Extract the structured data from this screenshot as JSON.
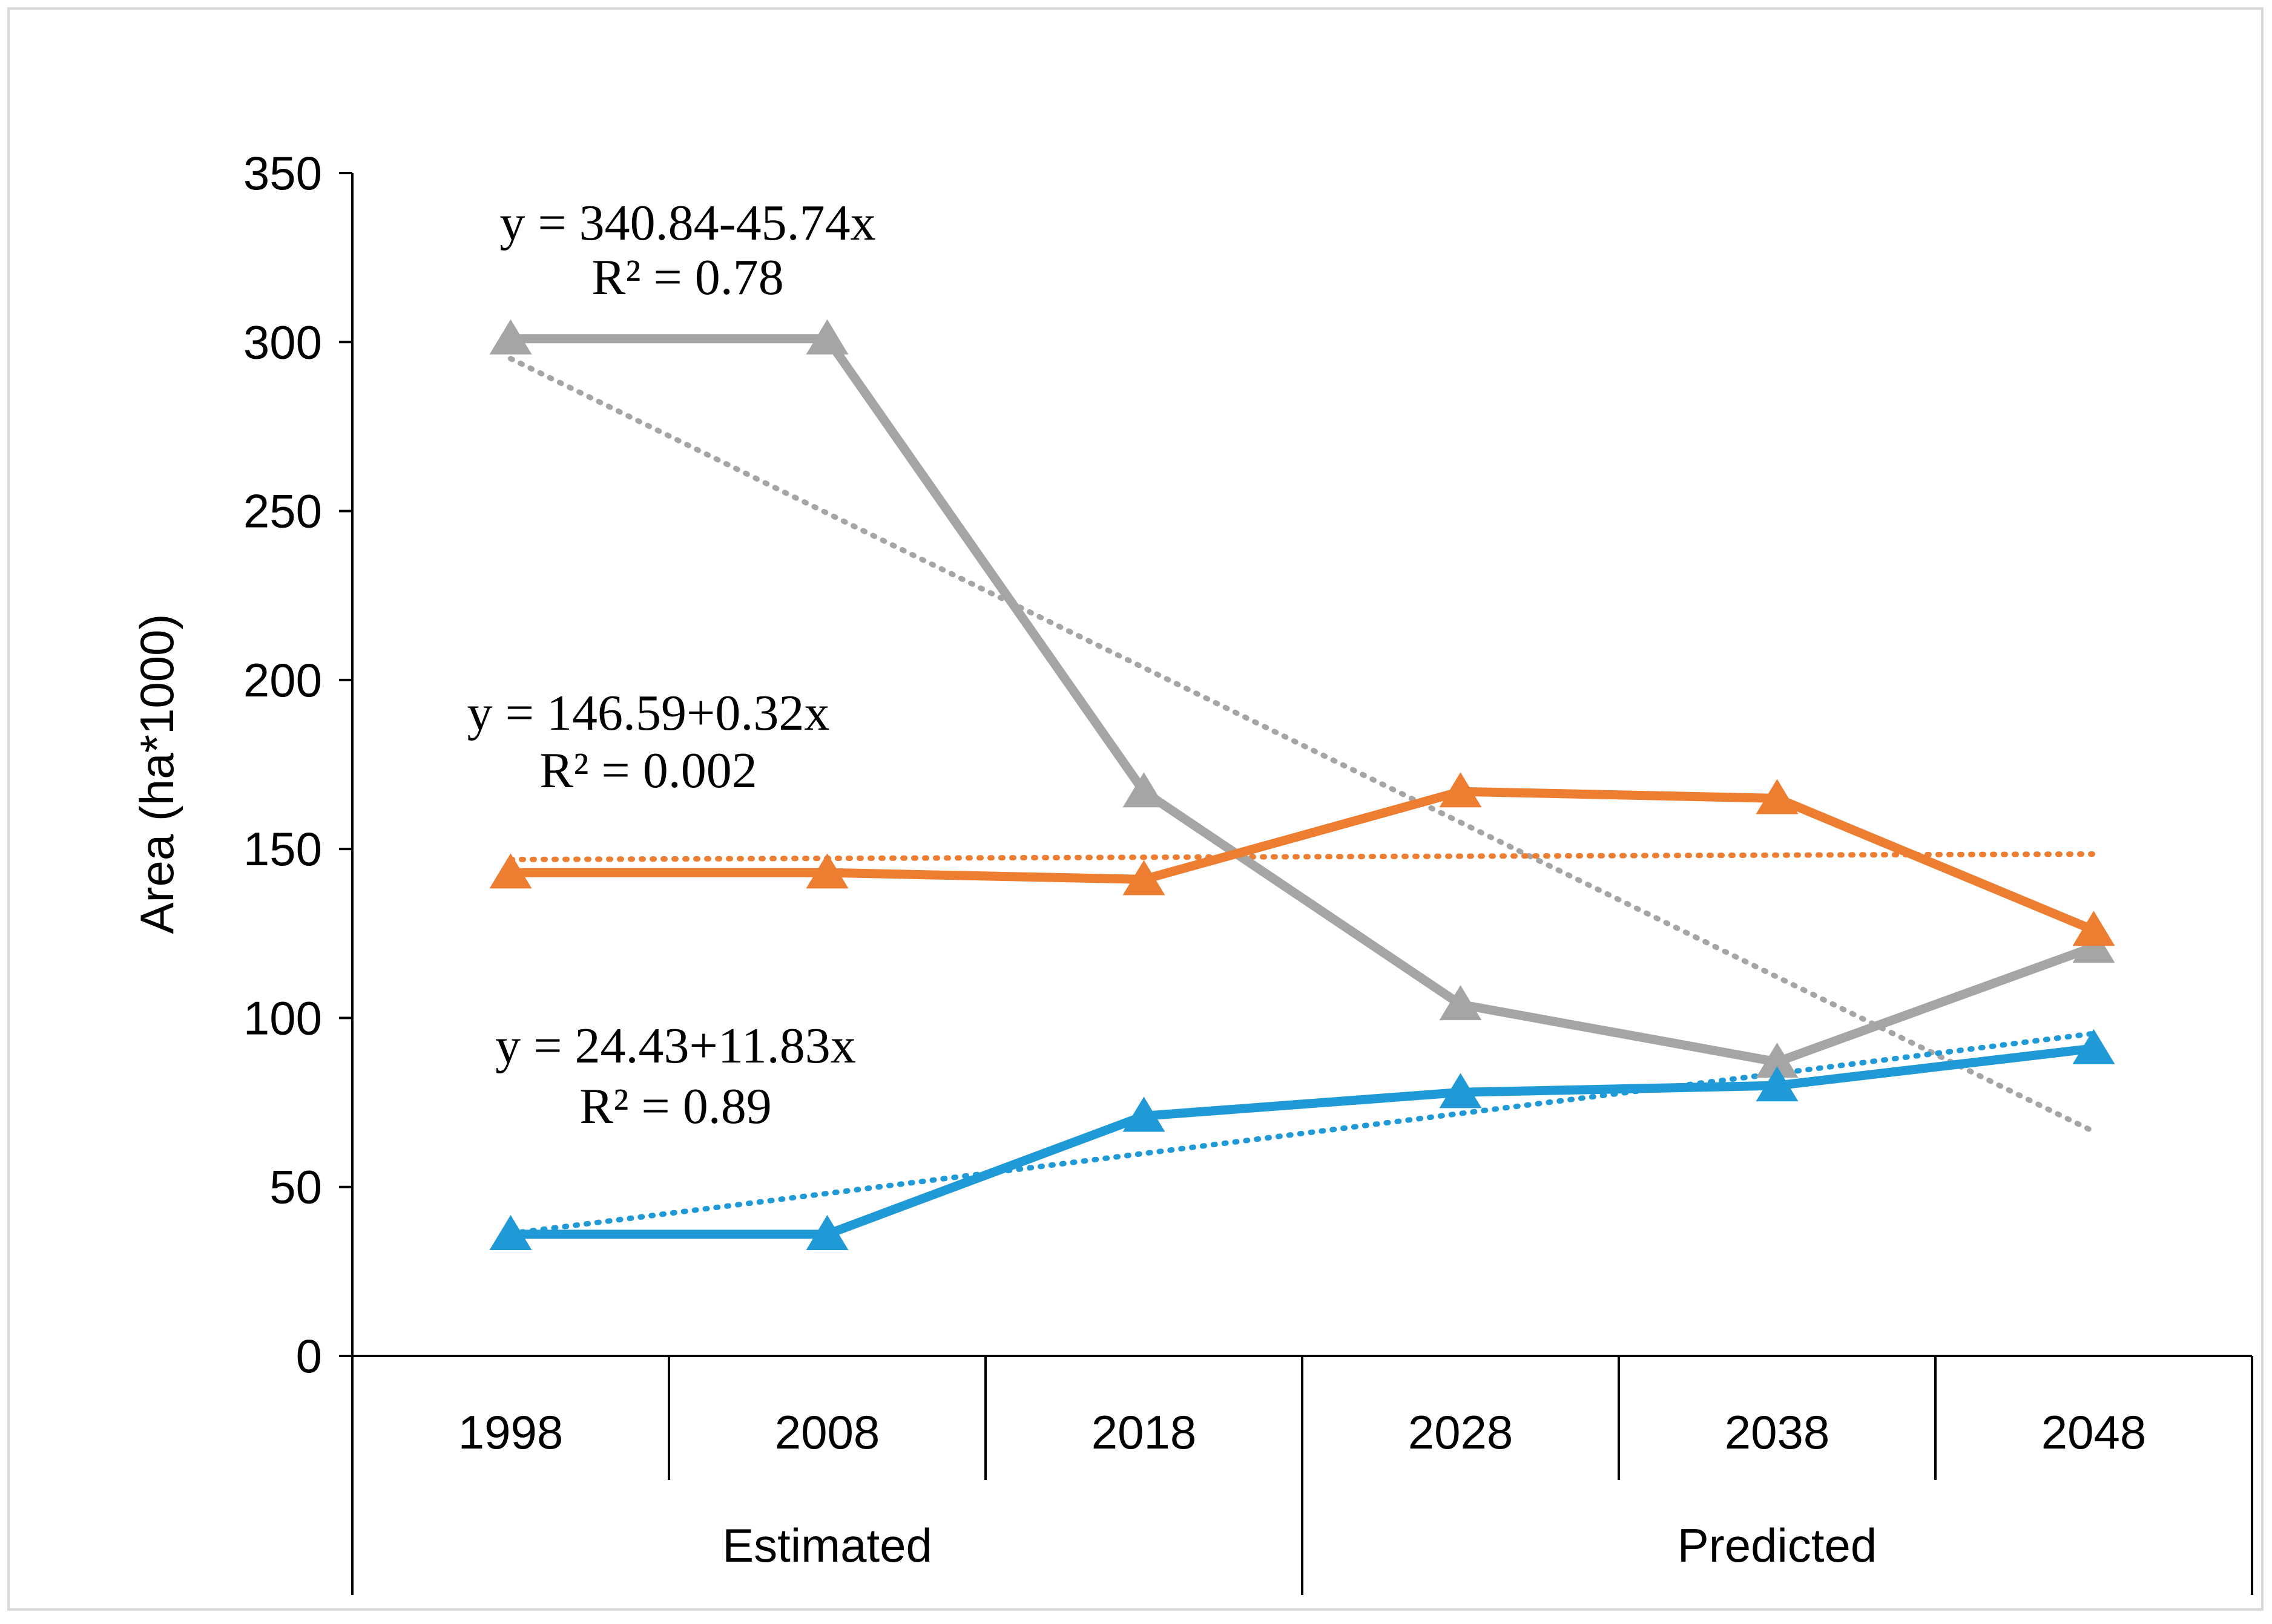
{
  "chart_data": {
    "type": "line",
    "title": "",
    "ylabel": "Area (ha*1000)",
    "xlabel": "",
    "ylim": [
      0,
      350
    ],
    "yticks": [
      0,
      50,
      100,
      150,
      200,
      250,
      300,
      350
    ],
    "categories": [
      "1998",
      "2008",
      "2018",
      "2028",
      "2038",
      "2048"
    ],
    "groups": [
      {
        "label": "Estimated",
        "span": [
          0,
          2
        ]
      },
      {
        "label": "Predicted",
        "span": [
          3,
          5
        ]
      }
    ],
    "series": [
      {
        "name": "gray",
        "color": "#a5a5a5",
        "marker": "triangle",
        "values": [
          301,
          301,
          167,
          104,
          87,
          121
        ],
        "trend": {
          "intercept": 340.84,
          "slope": -45.74,
          "equation": "y = 340.84-45.74x",
          "r2": "R² = 0.78"
        }
      },
      {
        "name": "orange",
        "color": "#ed7d31",
        "marker": "triangle",
        "values": [
          143,
          143,
          141,
          167,
          165,
          126
        ],
        "trend": {
          "intercept": 146.59,
          "slope": 0.32,
          "equation": "y = 146.59+0.32x",
          "r2": "R² = 0.002"
        }
      },
      {
        "name": "blue",
        "color": "#1f9ad6",
        "marker": "triangle",
        "values": [
          36,
          36,
          71,
          78,
          80,
          91
        ],
        "trend": {
          "intercept": 24.43,
          "slope": 11.83,
          "equation": "y = 24.43+11.83x",
          "r2": "R² = 0.89"
        }
      }
    ]
  }
}
